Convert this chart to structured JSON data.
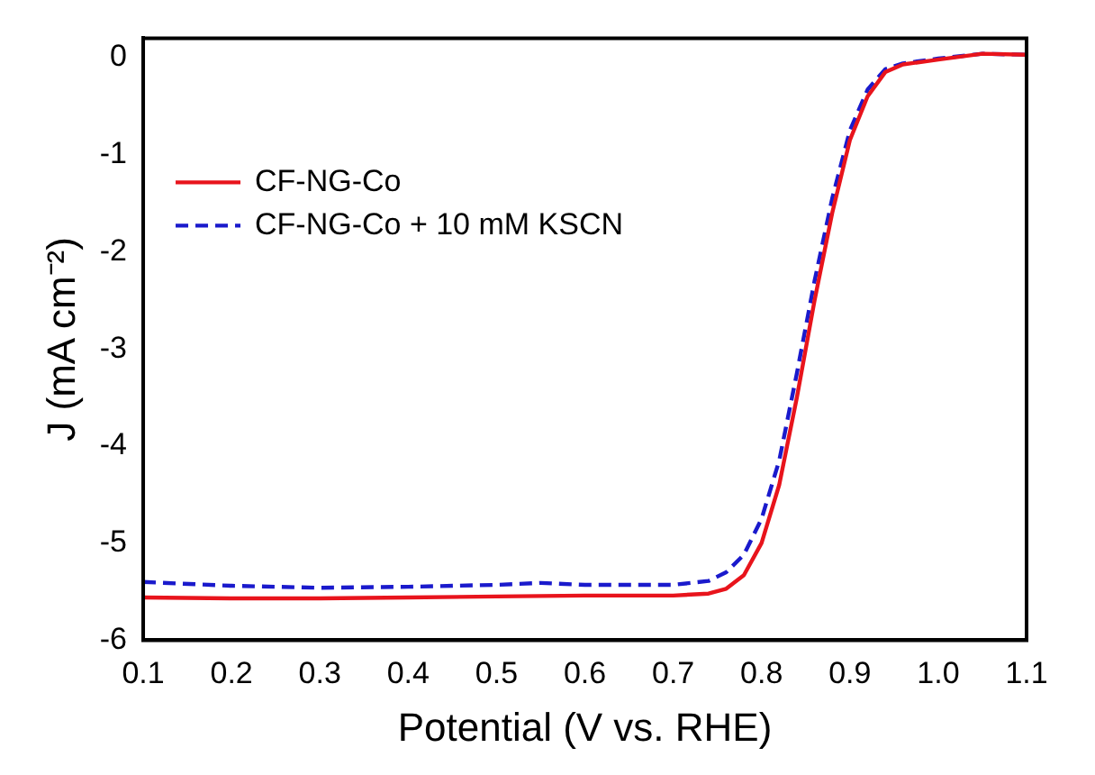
{
  "chart_data": {
    "type": "line",
    "xlabel": "Potential (V vs. RHE)",
    "ylabel": "J (mA cm⁻²)",
    "xlim": [
      0.1,
      1.1
    ],
    "xticks": [
      0.1,
      0.2,
      0.3,
      0.4,
      0.5,
      0.6,
      0.7,
      0.8,
      0.9,
      {
        "value": 1.0,
        "label": "1.0"
      },
      1.1
    ],
    "ylim": [
      -6,
      0.2
    ],
    "yticks": [
      -6,
      -5,
      -4,
      -3,
      -2,
      -1,
      0
    ],
    "grid": false,
    "legend": "top left",
    "marker": "none",
    "series": [
      {
        "name": "CF-NG-Co",
        "color": "#e8141c",
        "line_style": "solid",
        "x": [
          0.1,
          0.2,
          0.3,
          0.4,
          0.5,
          0.6,
          0.7,
          0.74,
          0.76,
          0.78,
          0.8,
          0.82,
          0.84,
          0.86,
          0.88,
          0.9,
          0.92,
          0.94,
          0.96,
          1.0,
          1.05,
          1.1
        ],
        "values": [
          -5.56,
          -5.57,
          -5.57,
          -5.56,
          -5.55,
          -5.54,
          -5.54,
          -5.52,
          -5.47,
          -5.33,
          -5.0,
          -4.4,
          -3.5,
          -2.5,
          -1.6,
          -0.85,
          -0.4,
          -0.15,
          -0.07,
          -0.02,
          0.04,
          0.03
        ]
      },
      {
        "name": "CF-NG-Co + 10 mM KSCN",
        "color": "#1a1acc",
        "line_style": "dashed",
        "x": [
          0.1,
          0.2,
          0.3,
          0.4,
          0.5,
          0.55,
          0.6,
          0.7,
          0.74,
          0.76,
          0.78,
          0.8,
          0.82,
          0.84,
          0.86,
          0.88,
          0.9,
          0.92,
          0.94,
          0.96,
          1.0,
          1.05,
          1.1
        ],
        "values": [
          -5.4,
          -5.44,
          -5.46,
          -5.45,
          -5.43,
          -5.41,
          -5.43,
          -5.43,
          -5.39,
          -5.3,
          -5.12,
          -4.75,
          -4.15,
          -3.25,
          -2.3,
          -1.45,
          -0.75,
          -0.33,
          -0.12,
          -0.06,
          -0.01,
          0.04,
          0.03
        ]
      }
    ]
  }
}
